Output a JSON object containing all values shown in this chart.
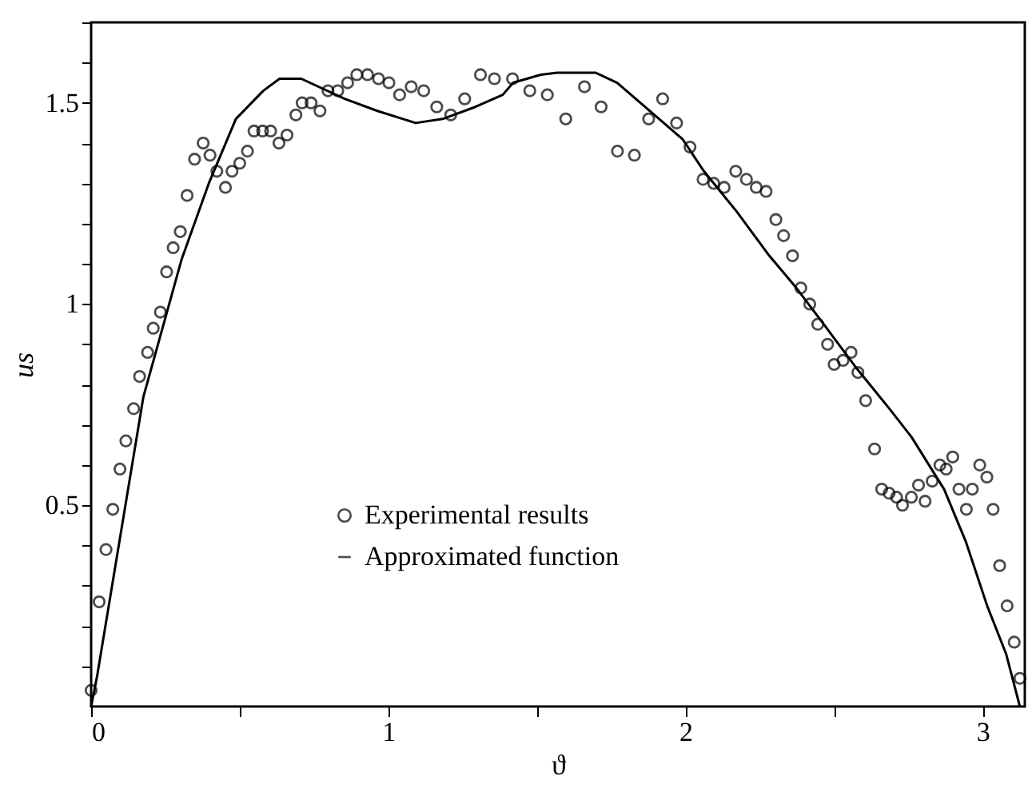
{
  "chart_data": {
    "type": "scatter",
    "xlabel": "ϑ",
    "ylabel": "us",
    "xlim": [
      0,
      3.1416
    ],
    "ylim": [
      0,
      1.7
    ],
    "xticks": [
      0,
      {
        "value": 0.5,
        "label": null
      },
      1,
      {
        "value": 1.5,
        "label": null
      },
      2,
      {
        "value": 2.5,
        "label": null
      },
      3
    ],
    "yticks": [
      {
        "value": 0.1,
        "label": null
      },
      {
        "value": 0.2,
        "label": null
      },
      {
        "value": 0.3,
        "label": null
      },
      {
        "value": 0.4,
        "label": null
      },
      0.5,
      {
        "value": 0.6,
        "label": null
      },
      {
        "value": 0.7,
        "label": null
      },
      {
        "value": 0.8,
        "label": null
      },
      {
        "value": 0.9,
        "label": null
      },
      1,
      {
        "value": 1.1,
        "label": null
      },
      {
        "value": 1.2,
        "label": null
      },
      {
        "value": 1.3,
        "label": null
      },
      {
        "value": 1.4,
        "label": null
      },
      1.5,
      {
        "value": 1.6,
        "label": null
      },
      {
        "value": 1.7,
        "label": null
      }
    ],
    "grid": false,
    "legend": "bottom",
    "series": [
      {
        "name": "Experimental results",
        "marker": "circle",
        "color": "#000000",
        "x": [
          0,
          0.027,
          0.05,
          0.073,
          0.097,
          0.117,
          0.143,
          0.163,
          0.19,
          0.209,
          0.233,
          0.254,
          0.276,
          0.3,
          0.323,
          0.348,
          0.377,
          0.4,
          0.423,
          0.452,
          0.474,
          0.5,
          0.526,
          0.548,
          0.577,
          0.604,
          0.632,
          0.659,
          0.689,
          0.71,
          0.74,
          0.77,
          0.797,
          0.83,
          0.863,
          0.894,
          0.93,
          0.967,
          1.002,
          1.038,
          1.077,
          1.119,
          1.163,
          1.21,
          1.257,
          1.31,
          1.357,
          1.418,
          1.476,
          1.535,
          1.597,
          1.66,
          1.716,
          1.771,
          1.828,
          1.876,
          1.923,
          1.97,
          2.015,
          2.059,
          2.095,
          2.13,
          2.169,
          2.205,
          2.238,
          2.271,
          2.304,
          2.33,
          2.36,
          2.388,
          2.418,
          2.445,
          2.478,
          2.5,
          2.53,
          2.557,
          2.58,
          2.606,
          2.636,
          2.66,
          2.685,
          2.71,
          2.73,
          2.76,
          2.784,
          2.806,
          2.83,
          2.856,
          2.877,
          2.899,
          2.92,
          2.945,
          2.965,
          2.99,
          3.014,
          3.035,
          3.057,
          3.082,
          3.106,
          3.125
        ],
        "values": [
          0.04,
          0.26,
          0.39,
          0.49,
          0.59,
          0.66,
          0.74,
          0.82,
          0.88,
          0.94,
          0.98,
          1.08,
          1.14,
          1.18,
          1.27,
          1.36,
          1.4,
          1.37,
          1.33,
          1.29,
          1.33,
          1.35,
          1.38,
          1.43,
          1.43,
          1.43,
          1.4,
          1.42,
          1.47,
          1.5,
          1.5,
          1.48,
          1.53,
          1.53,
          1.55,
          1.57,
          1.57,
          1.56,
          1.55,
          1.52,
          1.54,
          1.53,
          1.49,
          1.47,
          1.51,
          1.57,
          1.56,
          1.56,
          1.53,
          1.52,
          1.46,
          1.54,
          1.49,
          1.38,
          1.37,
          1.46,
          1.51,
          1.45,
          1.39,
          1.31,
          1.3,
          1.29,
          1.33,
          1.31,
          1.29,
          1.28,
          1.21,
          1.17,
          1.12,
          1.04,
          1.0,
          0.95,
          0.9,
          0.85,
          0.86,
          0.88,
          0.83,
          0.76,
          0.64,
          0.54,
          0.53,
          0.52,
          0.5,
          0.52,
          0.55,
          0.51,
          0.56,
          0.6,
          0.59,
          0.62,
          0.54,
          0.49,
          0.54,
          0.6,
          0.57,
          0.49,
          0.35,
          0.25,
          0.16,
          0.07
        ]
      },
      {
        "name": "Approximated function",
        "type": "line",
        "line_style": "solid",
        "color": "#000000",
        "x": [
          0,
          0.02,
          0.176,
          0.304,
          0.396,
          0.487,
          0.579,
          0.634,
          0.707,
          0.853,
          0.963,
          1.092,
          1.183,
          1.293,
          1.385,
          1.42,
          1.513,
          1.568,
          1.697,
          1.77,
          1.88,
          1.99,
          2.062,
          2.172,
          2.282,
          2.373,
          2.465,
          2.576,
          2.686,
          2.76,
          2.87,
          2.943,
          3.015,
          3.079,
          3.125
        ],
        "values": [
          0,
          0.075,
          0.77,
          1.11,
          1.3,
          1.46,
          1.53,
          1.56,
          1.56,
          1.51,
          1.48,
          1.45,
          1.46,
          1.49,
          1.52,
          1.55,
          1.57,
          1.575,
          1.575,
          1.55,
          1.48,
          1.41,
          1.33,
          1.23,
          1.12,
          1.04,
          0.95,
          0.84,
          0.74,
          0.67,
          0.54,
          0.41,
          0.25,
          0.13,
          0.0
        ]
      }
    ]
  }
}
